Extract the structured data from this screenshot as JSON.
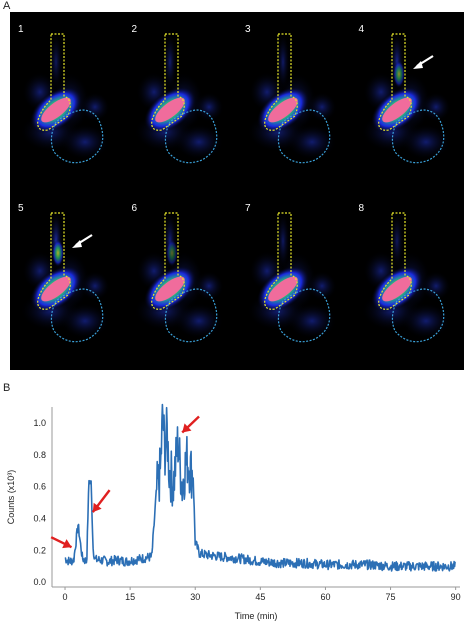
{
  "panels": {
    "a_label": "A",
    "b_label": "B"
  },
  "frames": [
    {
      "label": "1",
      "arrow": false,
      "activity": 0.2
    },
    {
      "label": "2",
      "arrow": false,
      "activity": 0.35
    },
    {
      "label": "3",
      "arrow": false,
      "activity": 0.3
    },
    {
      "label": "4",
      "arrow": true,
      "activity": 0.8
    },
    {
      "label": "5",
      "arrow": true,
      "activity": 1.0
    },
    {
      "label": "6",
      "arrow": false,
      "activity": 0.55
    },
    {
      "label": "7",
      "arrow": false,
      "activity": 0.25
    },
    {
      "label": "8",
      "arrow": false,
      "activity": 0.2
    }
  ],
  "colors": {
    "trace": "#2c6fb5",
    "arrow_red": "#e02020",
    "roi_yellow": "#e8e82a",
    "roi_blue": "#3aa0d8",
    "hot": "#f06c9c"
  },
  "chart_data": {
    "type": "line",
    "xlabel": "Time (min)",
    "ylabel": "Counts (x10³)",
    "xlim": [
      -3,
      91
    ],
    "ylim": [
      -0.03,
      1.1
    ],
    "xticks": [
      0,
      15,
      30,
      45,
      60,
      75,
      90
    ],
    "yticks": [
      "0.0",
      "0.2",
      "0.4",
      "0.6",
      "0.8",
      "1.0"
    ],
    "series": [
      {
        "values_x": [
          0,
          1,
          2,
          3,
          4,
          5,
          5.5,
          6,
          6.5,
          7,
          8,
          10,
          12,
          14,
          16,
          18,
          20,
          21,
          22,
          22.5,
          23,
          23.5,
          24,
          25,
          26,
          27,
          28,
          29,
          29.5,
          30,
          31,
          33,
          36,
          40,
          45,
          50,
          55,
          60,
          65,
          70,
          75,
          80,
          85,
          90
        ],
        "values_y": [
          0.15,
          0.13,
          0.14,
          0.36,
          0.15,
          0.13,
          0.64,
          0.62,
          0.2,
          0.14,
          0.14,
          0.13,
          0.14,
          0.13,
          0.14,
          0.15,
          0.16,
          0.55,
          0.7,
          1.06,
          0.82,
          0.95,
          0.7,
          0.62,
          0.88,
          0.6,
          0.78,
          0.7,
          0.68,
          0.25,
          0.18,
          0.17,
          0.16,
          0.15,
          0.13,
          0.12,
          0.12,
          0.11,
          0.11,
          0.11,
          0.1,
          0.1,
          0.1,
          0.1
        ]
      }
    ],
    "annotations": [
      {
        "type": "arrow",
        "target_x": 1,
        "target_y": 0.2
      },
      {
        "type": "arrow",
        "target_x": 6,
        "target_y": 0.44
      },
      {
        "type": "arrow",
        "target_x": 27,
        "target_y": 0.92
      }
    ]
  }
}
